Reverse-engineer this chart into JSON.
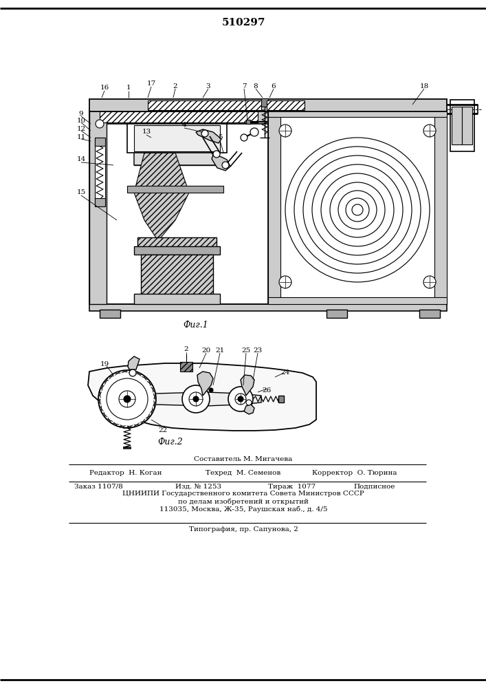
{
  "title": "510297",
  "fig1_caption": "Фиг.1",
  "fig2_caption": "Фиг.2",
  "footer_line1": "Составитель М. Мигачева",
  "footer_line2_left": "Редактор  Н. Коган",
  "footer_line2_mid": "Техред  М. Семенов",
  "footer_line2_right": "Корректор  О. Тюрина",
  "footer_line3_left": "Заказ 1107/8",
  "footer_line3_mid1": "Изд. № 1253",
  "footer_line3_mid2": "Тираж  1077",
  "footer_line3_right": "Подписное",
  "footer_line4": "ЦНИИПИ Государственного комитета Совета Министров СССР",
  "footer_line5": "по делам изобретений и открытий",
  "footer_line6": "113035, Москва, Ж-35, Раушская наб., д. 4/5",
  "footer_line7": "Типография, пр. Сапунова, 2",
  "bg_color": "#ffffff",
  "line_color": "#000000"
}
